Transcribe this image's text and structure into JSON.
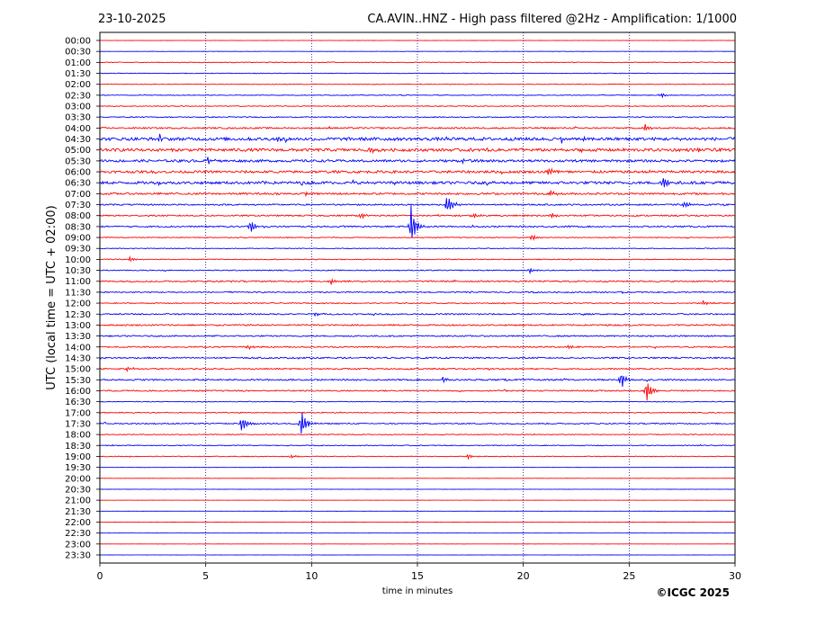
{
  "header": {
    "date": "23-10-2025",
    "title": "CA.AVIN..HNZ - High pass filtered @2Hz - Amplification: 1/1000"
  },
  "footer": {
    "copyright": "©ICGC 2025"
  },
  "colors": {
    "even_row": "#ff0000",
    "odd_row": "#0000ff",
    "axis": "#000000",
    "gridline": "#000080"
  },
  "chart_data": {
    "type": "line",
    "title": "CA.AVIN..HNZ - High pass filtered @2Hz - Amplification: 1/1000",
    "xlabel": "time in minutes",
    "ylabel": "UTC (local time = UTC + 02:00)",
    "xlim": [
      0,
      30
    ],
    "x_ticks": [
      "0",
      "5",
      "10",
      "15",
      "20",
      "25",
      "30"
    ],
    "vertical_grid_at": [
      5,
      10,
      15,
      20,
      25
    ],
    "rows": [
      "00:00",
      "00:30",
      "01:00",
      "01:30",
      "02:00",
      "02:30",
      "03:00",
      "03:30",
      "04:00",
      "04:30",
      "05:00",
      "05:30",
      "06:00",
      "06:30",
      "07:00",
      "07:30",
      "08:00",
      "08:30",
      "09:00",
      "09:30",
      "10:00",
      "10:30",
      "11:00",
      "11:30",
      "12:00",
      "12:30",
      "13:00",
      "13:30",
      "14:00",
      "14:30",
      "15:00",
      "15:30",
      "16:00",
      "16:30",
      "17:00",
      "17:30",
      "18:00",
      "18:30",
      "19:00",
      "19:30",
      "20:00",
      "20:30",
      "21:00",
      "21:30",
      "22:00",
      "22:30",
      "23:00",
      "23:30"
    ],
    "noise_level": [
      0.08,
      0.1,
      0.3,
      0.25,
      0.22,
      0.3,
      0.35,
      0.4,
      0.6,
      1.3,
      1.2,
      1.0,
      1.0,
      1.1,
      0.8,
      0.6,
      0.6,
      0.6,
      0.35,
      0.3,
      0.35,
      0.4,
      0.6,
      0.5,
      0.4,
      0.55,
      0.6,
      0.55,
      0.55,
      0.6,
      0.55,
      0.6,
      0.55,
      0.3,
      0.35,
      0.5,
      0.35,
      0.35,
      0.3,
      0.1,
      0.08,
      0.06,
      0.06,
      0.06,
      0.06,
      0.06,
      0.06,
      0.06
    ],
    "events": [
      {
        "row": "02:30",
        "minute": 26.5,
        "amplitude": 0.35
      },
      {
        "row": "04:00",
        "minute": 25.7,
        "amplitude": 0.55
      },
      {
        "row": "04:30",
        "minute": 21.8,
        "amplitude": 0.4
      },
      {
        "row": "05:00",
        "minute": 12.8,
        "amplitude": 0.45
      },
      {
        "row": "05:30",
        "minute": 5.1,
        "amplitude": 0.5
      },
      {
        "row": "06:00",
        "minute": 21.2,
        "amplitude": 0.55
      },
      {
        "row": "06:30",
        "minute": 26.6,
        "amplitude": 1.0
      },
      {
        "row": "07:00",
        "minute": 21.3,
        "amplitude": 0.45
      },
      {
        "row": "07:30",
        "minute": 16.4,
        "amplitude": 1.6
      },
      {
        "row": "07:30",
        "minute": 27.6,
        "amplitude": 0.45
      },
      {
        "row": "08:00",
        "minute": 17.6,
        "amplitude": 0.45
      },
      {
        "row": "08:00",
        "minute": 21.3,
        "amplitude": 0.4
      },
      {
        "row": "08:00",
        "minute": 12.3,
        "amplitude": 0.35
      },
      {
        "row": "08:30",
        "minute": 14.7,
        "amplitude": 2.6
      },
      {
        "row": "08:30",
        "minute": 7.1,
        "amplitude": 1.0
      },
      {
        "row": "09:00",
        "minute": 20.4,
        "amplitude": 0.45
      },
      {
        "row": "10:00",
        "minute": 1.4,
        "amplitude": 0.35
      },
      {
        "row": "10:30",
        "minute": 20.3,
        "amplitude": 0.35
      },
      {
        "row": "11:00",
        "minute": 10.9,
        "amplitude": 0.45
      },
      {
        "row": "12:00",
        "minute": 28.5,
        "amplitude": 0.3
      },
      {
        "row": "12:30",
        "minute": 10.2,
        "amplitude": 0.3
      },
      {
        "row": "14:00",
        "minute": 7.0,
        "amplitude": 0.3
      },
      {
        "row": "14:00",
        "minute": 22.1,
        "amplitude": 0.3
      },
      {
        "row": "15:00",
        "minute": 1.3,
        "amplitude": 0.35
      },
      {
        "row": "15:30",
        "minute": 24.6,
        "amplitude": 1.2
      },
      {
        "row": "15:30",
        "minute": 16.2,
        "amplitude": 0.35
      },
      {
        "row": "16:00",
        "minute": 25.8,
        "amplitude": 1.6
      },
      {
        "row": "17:30",
        "minute": 6.7,
        "amplitude": 1.05
      },
      {
        "row": "17:30",
        "minute": 9.5,
        "amplitude": 2.0
      },
      {
        "row": "19:00",
        "minute": 17.4,
        "amplitude": 0.35
      },
      {
        "row": "19:00",
        "minute": 9.0,
        "amplitude": 0.3
      }
    ]
  }
}
